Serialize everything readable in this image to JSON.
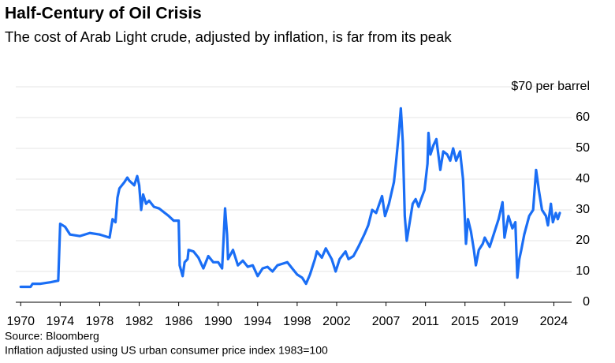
{
  "chart_data": {
    "type": "line",
    "title": "Half-Century of Oil Crisis",
    "subtitle": "The cost of Arab Light crude, adjusted by inflation, is far from its peak",
    "source": "Source: Bloomberg",
    "note": "Inflation adjusted using US urban consumer price index 1983=100",
    "color": "#1a6ef5",
    "grid": true,
    "xlim": [
      1969.5,
      2025.8
    ],
    "xticks": [
      1970,
      1974,
      1978,
      1982,
      1986,
      1990,
      1994,
      1998,
      2002,
      2007,
      2011,
      2015,
      2019,
      2024
    ],
    "ylim": [
      0,
      70
    ],
    "yticks": [
      0,
      10,
      20,
      30,
      40,
      50,
      60,
      {
        "value": 70,
        "label": "$70 per barrel"
      }
    ],
    "x": [
      1970,
      1971,
      1971.2,
      1972,
      1973,
      1973.8,
      1974.0,
      1974.5,
      1975,
      1976,
      1977,
      1978,
      1979,
      1979.3,
      1979.6,
      1979.8,
      1980,
      1980.5,
      1980.8,
      1981,
      1981.5,
      1981.8,
      1982,
      1982.2,
      1982.4,
      1982.7,
      1983,
      1983.5,
      1984,
      1985,
      1985.5,
      1986,
      1986.1,
      1986.4,
      1986.6,
      1986.9,
      1987,
      1987.5,
      1988,
      1988.5,
      1989,
      1989.5,
      1990,
      1990.4,
      1990.7,
      1990.9,
      1991,
      1991.5,
      1992,
      1992.5,
      1993,
      1993.5,
      1994,
      1994.5,
      1995,
      1995.5,
      1996,
      1996.5,
      1997,
      1997.5,
      1998,
      1998.5,
      1998.9,
      1999.3,
      1999.8,
      2000,
      2000.5,
      2000.9,
      2001.5,
      2001.9,
      2002.3,
      2002.9,
      2003.2,
      2003.7,
      2004.2,
      2004.8,
      2005.2,
      2005.6,
      2006,
      2006.6,
      2006.9,
      2007.3,
      2007.8,
      2008,
      2008.3,
      2008.5,
      2008.7,
      2008.9,
      2009.1,
      2009.4,
      2009.7,
      2010,
      2010.3,
      2010.5,
      2010.9,
      2011.2,
      2011.3,
      2011.5,
      2011.8,
      2012.1,
      2012.5,
      2012.8,
      2013.2,
      2013.5,
      2013.8,
      2014.1,
      2014.5,
      2014.8,
      2015.1,
      2015.3,
      2015.6,
      2015.9,
      2016.1,
      2016.4,
      2016.8,
      2017,
      2017.5,
      2017.9,
      2018.4,
      2018.8,
      2019,
      2019.4,
      2019.8,
      2020.1,
      2020.3,
      2020.5,
      2020.7,
      2021,
      2021.5,
      2021.9,
      2022.2,
      2022.5,
      2022.8,
      2023.2,
      2023.4,
      2023.7,
      2023.9,
      2024.2,
      2024.4,
      2024.6
    ],
    "values": [
      5,
      5,
      6,
      6,
      6.5,
      7,
      25.5,
      24.5,
      22,
      21.5,
      22.5,
      22,
      21,
      27,
      26,
      34,
      37,
      39,
      40.5,
      39.5,
      38,
      41,
      38,
      30,
      35,
      32,
      33,
      31,
      30.5,
      28,
      26.5,
      26.5,
      12,
      8.5,
      13,
      14,
      17,
      16.5,
      14.5,
      11,
      15,
      13,
      13,
      11,
      30.5,
      22,
      14,
      17,
      12,
      13.5,
      11.5,
      12,
      8.5,
      11,
      11.5,
      10,
      12,
      12.5,
      13,
      11,
      9,
      8,
      6,
      9,
      14,
      16.5,
      14.5,
      17.5,
      14,
      10,
      14,
      16.5,
      14,
      15,
      18,
      22,
      25,
      30,
      29,
      34.5,
      28,
      32,
      39,
      45,
      55,
      63,
      52,
      28,
      20,
      26,
      32,
      33.5,
      31,
      33,
      36.5,
      45,
      55,
      48,
      51,
      53,
      43,
      49,
      48,
      46,
      50,
      46,
      49,
      40,
      19,
      27,
      23,
      17,
      12,
      17,
      19,
      21,
      18,
      22,
      27,
      32.5,
      21,
      28,
      24,
      26,
      8,
      14,
      17,
      22,
      28,
      30,
      43,
      36,
      30,
      28,
      25,
      32,
      26,
      29,
      27,
      29
    ]
  }
}
